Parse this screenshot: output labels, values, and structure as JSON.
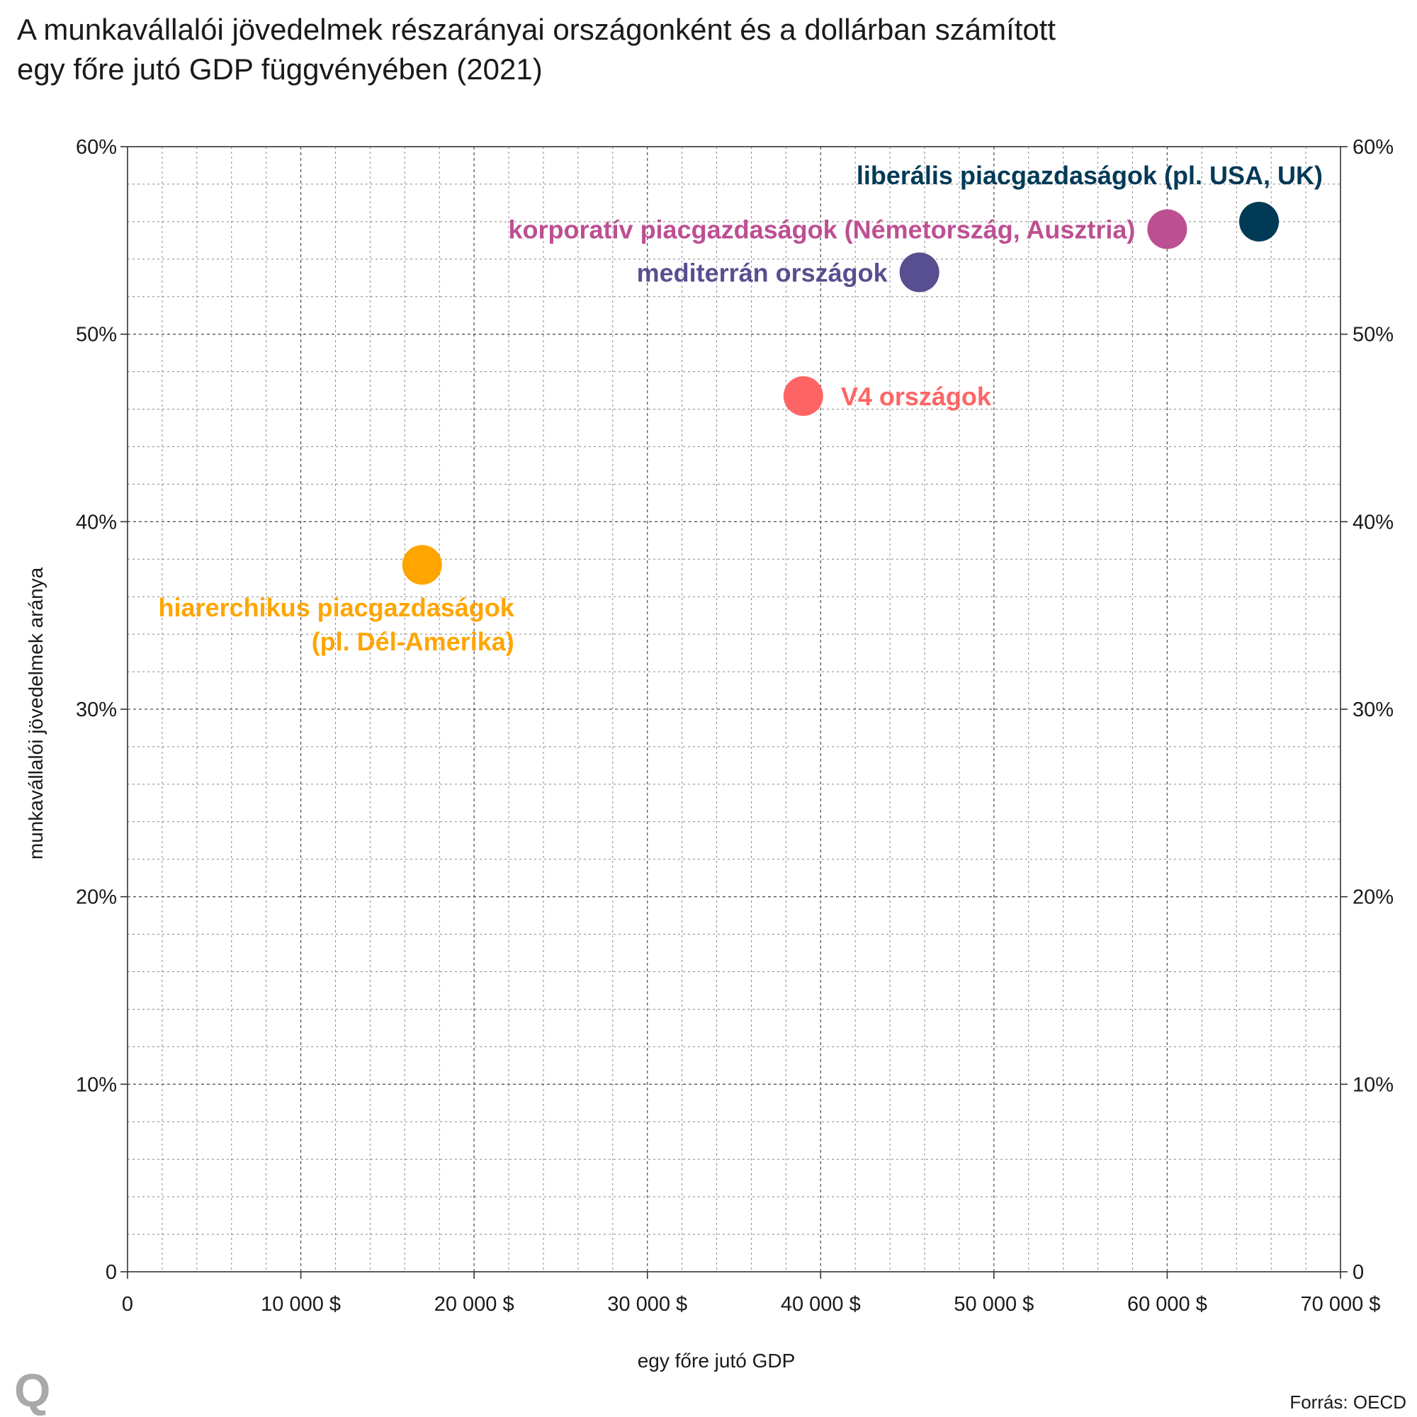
{
  "header": {
    "title_line1": "A munkavállalói jövedelmek részarányai országonként és a dollárban számított",
    "title_line2": "egy főre jutó GDP függvényében (2021)"
  },
  "footer": {
    "source": "Forrás: OECD",
    "logo": "Q"
  },
  "colors": {
    "liberal": "#003a57",
    "corporate": "#bd4f93",
    "mediterranean": "#574f8f",
    "v4": "#ff6464",
    "hierarchical": "#ffa500",
    "grid": "#888888",
    "axis": "#333333"
  },
  "chart_data": {
    "type": "scatter",
    "title": "A munkavállalói jövedelmek részarányai országonként és a dollárban számított egy főre jutó GDP függvényében (2021)",
    "xlabel": "egy főre jutó GDP",
    "ylabel": "munkavállalói jövedelmek aránya",
    "xlim": [
      0,
      70000
    ],
    "ylim": [
      0,
      60
    ],
    "x_ticks": [
      0,
      10000,
      20000,
      30000,
      40000,
      50000,
      60000,
      70000
    ],
    "x_tick_labels": [
      "0",
      "10 000 $",
      "20 000 $",
      "30 000 $",
      "40 000 $",
      "50 000 $",
      "60 000 $",
      "70 000 $"
    ],
    "y_ticks": [
      0,
      10,
      20,
      30,
      40,
      50,
      60
    ],
    "y_tick_labels": [
      "0",
      "10%",
      "20%",
      "30%",
      "40%",
      "50%",
      "60%"
    ],
    "grid": true,
    "right_axis_mirror": true,
    "points": [
      {
        "id": "liberal",
        "x": 65300,
        "y": 56.0,
        "label_lines": [
          "liberális piacgazdaságok (pl. USA, UK)"
        ],
        "color_key": "liberal"
      },
      {
        "id": "corporate",
        "x": 60000,
        "y": 55.6,
        "label_lines": [
          "korporatív piacgazdaságok (Németország, Ausztria)"
        ],
        "color_key": "corporate"
      },
      {
        "id": "mediterranean",
        "x": 45700,
        "y": 53.3,
        "label_lines": [
          "mediterrán országok"
        ],
        "color_key": "mediterranean"
      },
      {
        "id": "v4",
        "x": 39000,
        "y": 46.7,
        "label_lines": [
          "V4 országok"
        ],
        "color_key": "v4"
      },
      {
        "id": "hierarchical",
        "x": 17000,
        "y": 37.7,
        "label_lines": [
          "hiarerchikus piacgazdaságok",
          "(pl. Dél-Amerika)"
        ],
        "color_key": "hierarchical"
      }
    ]
  }
}
